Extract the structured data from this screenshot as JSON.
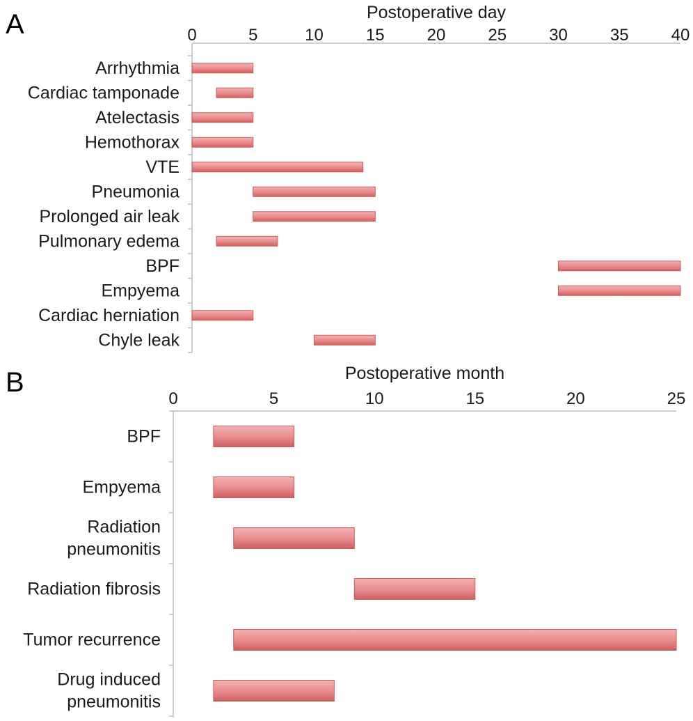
{
  "chart_data": [
    {
      "type": "bar",
      "orientation": "horizontal-range",
      "panel_label": "A",
      "title": "",
      "xlabel": "Postoperative day",
      "ylabel": "",
      "xlim": [
        0,
        40
      ],
      "xticks": [
        0,
        5,
        10,
        15,
        20,
        25,
        30,
        35,
        40
      ],
      "axis_position": "top",
      "grid": false,
      "legend": "none",
      "color": "#e07878",
      "categories": [
        "Arrhythmia",
        "Cardiac tamponade",
        "Atelectasis",
        "Hemothorax",
        "VTE",
        "Pneumonia",
        "Prolonged air leak",
        "Pulmonary edema",
        "BPF",
        "Empyema",
        "Cardiac herniation",
        "Chyle leak"
      ],
      "ranges": [
        [
          0,
          5
        ],
        [
          2,
          5
        ],
        [
          0,
          5
        ],
        [
          0,
          5
        ],
        [
          0,
          14
        ],
        [
          5,
          15
        ],
        [
          5,
          15
        ],
        [
          2,
          7
        ],
        [
          30,
          40
        ],
        [
          30,
          40
        ],
        [
          0,
          5
        ],
        [
          10,
          15
        ]
      ]
    },
    {
      "type": "bar",
      "orientation": "horizontal-range",
      "panel_label": "B",
      "title": "",
      "xlabel": "Postoperative month",
      "ylabel": "",
      "xlim": [
        0,
        25
      ],
      "xticks": [
        0,
        5,
        10,
        15,
        20,
        25
      ],
      "axis_position": "top",
      "grid": false,
      "legend": "none",
      "color": "#e07878",
      "categories": [
        [
          "BPF"
        ],
        [
          "Empyema"
        ],
        [
          "Radiation",
          "pneumonitis"
        ],
        [
          "Radiation fibrosis"
        ],
        [
          "Tumor recurrence"
        ],
        [
          "Drug induced",
          "pneumonitis"
        ]
      ],
      "ranges": [
        [
          2,
          6
        ],
        [
          2,
          6
        ],
        [
          3,
          9
        ],
        [
          9,
          15
        ],
        [
          3,
          25
        ],
        [
          2,
          8
        ]
      ]
    }
  ]
}
